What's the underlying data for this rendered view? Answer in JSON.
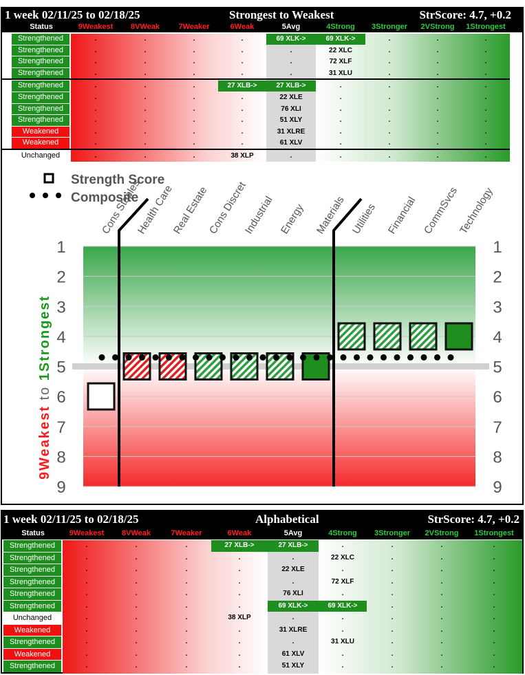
{
  "colors": {
    "strong_green": "#1e8f1e",
    "weak_red": "#f01010",
    "avg_gray": "#d9d9d9",
    "hatch_red": "#e02020",
    "hatch_green": "#2e9e3e"
  },
  "top_table": {
    "title_left": "1 week 02/11/25 to 02/18/25",
    "title_center": "Strongest to Weakest",
    "title_right": "StrScore: 4.7, +0.2",
    "columns": [
      "Status",
      "9Weakest",
      "8VWeak",
      "7Weaker",
      "6Weak",
      "5Avg",
      "4Strong",
      "3Stronger",
      "2VStrong",
      "1Strongest"
    ],
    "rows": [
      {
        "status": "Strengthened",
        "cells": [
          ".",
          ".",
          ".",
          ".",
          "69 XLK->",
          "69 XLK->",
          ".",
          ".",
          "."
        ],
        "move_from": 4,
        "move_to": 5
      },
      {
        "status": "Strengthened",
        "cells": [
          ".",
          ".",
          ".",
          ".",
          ".",
          "22 XLC",
          ".",
          ".",
          "."
        ]
      },
      {
        "status": "Strengthened",
        "cells": [
          ".",
          ".",
          ".",
          ".",
          ".",
          "72 XLF",
          ".",
          ".",
          "."
        ]
      },
      {
        "status": "Strengthened",
        "cells": [
          ".",
          ".",
          ".",
          ".",
          ".",
          "31 XLU",
          ".",
          ".",
          "."
        ]
      },
      {
        "status": "Strengthened",
        "cells": [
          ".",
          ".",
          ".",
          "27 XLB->",
          "27 XLB->",
          ".",
          ".",
          ".",
          "."
        ],
        "move_from": 3,
        "move_to": 4
      },
      {
        "status": "Strengthened",
        "cells": [
          ".",
          ".",
          ".",
          ".",
          "22 XLE",
          ".",
          ".",
          ".",
          "."
        ]
      },
      {
        "status": "Strengthened",
        "cells": [
          ".",
          ".",
          ".",
          ".",
          "76 XLI",
          ".",
          ".",
          ".",
          "."
        ]
      },
      {
        "status": "Strengthened",
        "cells": [
          ".",
          ".",
          ".",
          ".",
          "51 XLY",
          ".",
          ".",
          ".",
          "."
        ]
      },
      {
        "status": "Weakened",
        "cells": [
          ".",
          ".",
          ".",
          ".",
          "31 XLRE",
          ".",
          ".",
          ".",
          "."
        ]
      },
      {
        "status": "Weakened",
        "cells": [
          ".",
          ".",
          ".",
          ".",
          "61 XLV",
          ".",
          ".",
          ".",
          "."
        ]
      },
      {
        "status": "Unchanged",
        "cells": [
          ".",
          ".",
          ".",
          "38 XLP",
          ".",
          ".",
          ".",
          ".",
          "."
        ]
      }
    ]
  },
  "chart_data": {
    "type": "scatter",
    "title": "",
    "legend": [
      {
        "name": "Strength Score",
        "marker": "square"
      },
      {
        "name": "Composite",
        "marker": "dots"
      }
    ],
    "categories": [
      "Cons Staples",
      "Health Care",
      "Real Estate",
      "Cons Discret",
      "Industrial",
      "Energy",
      "Materials",
      "Utilities",
      "Financial",
      "CommSvcs",
      "Technology"
    ],
    "y_axis": {
      "label_left": "9Weakest",
      "label_mid": "to",
      "label_right": "1Strongest",
      "ticks": [
        "1",
        "2",
        "3",
        "4",
        "5",
        "6",
        "7",
        "8",
        "9"
      ],
      "range": [
        1,
        9
      ],
      "inverted": true
    },
    "strength_scores": [
      6,
      5,
      5,
      5,
      5,
      5,
      5,
      4,
      4,
      4,
      4
    ],
    "composite": 4.7,
    "average_line": 5,
    "fill_styles": [
      "open",
      "hatch-red",
      "hatch-red",
      "hatch-green",
      "hatch-green",
      "hatch-green",
      "solid-green",
      "hatch-green",
      "hatch-green",
      "hatch-green",
      "solid-green"
    ]
  },
  "bottom_table": {
    "title_left": "1 week 02/11/25 to 02/18/25",
    "title_center": "Alphabetical",
    "title_right": "StrScore: 4.7, +0.2",
    "columns": [
      "Status",
      "9Weakest",
      "8VWeak",
      "7Weaker",
      "6Weak",
      "5Avg",
      "4Strong",
      "3Stronger",
      "2VStrong",
      "1Strongest"
    ],
    "rows": [
      {
        "status": "Strengthened",
        "cells": [
          ".",
          ".",
          ".",
          "27 XLB->",
          "27 XLB->",
          ".",
          ".",
          ".",
          "."
        ],
        "move_from": 3,
        "move_to": 4
      },
      {
        "status": "Strengthened",
        "cells": [
          ".",
          ".",
          ".",
          ".",
          ".",
          "22 XLC",
          ".",
          ".",
          "."
        ]
      },
      {
        "status": "Strengthened",
        "cells": [
          ".",
          ".",
          ".",
          ".",
          "22 XLE",
          ".",
          ".",
          ".",
          "."
        ]
      },
      {
        "status": "Strengthened",
        "cells": [
          ".",
          ".",
          ".",
          ".",
          ".",
          "72 XLF",
          ".",
          ".",
          "."
        ]
      },
      {
        "status": "Strengthened",
        "cells": [
          ".",
          ".",
          ".",
          ".",
          "76 XLI",
          ".",
          ".",
          ".",
          "."
        ]
      },
      {
        "status": "Strengthened",
        "cells": [
          ".",
          ".",
          ".",
          ".",
          "69 XLK->",
          "69 XLK->",
          ".",
          ".",
          "."
        ],
        "move_from": 4,
        "move_to": 5
      },
      {
        "status": "Unchanged",
        "cells": [
          ".",
          ".",
          ".",
          "38 XLP",
          ".",
          ".",
          ".",
          ".",
          "."
        ]
      },
      {
        "status": "Weakened",
        "cells": [
          ".",
          ".",
          ".",
          ".",
          "31 XLRE",
          ".",
          ".",
          ".",
          "."
        ]
      },
      {
        "status": "Strengthened",
        "cells": [
          ".",
          ".",
          ".",
          ".",
          ".",
          "31 XLU",
          ".",
          ".",
          "."
        ]
      },
      {
        "status": "Weakened",
        "cells": [
          ".",
          ".",
          ".",
          ".",
          "61 XLV",
          ".",
          ".",
          ".",
          "."
        ]
      },
      {
        "status": "Strengthened",
        "cells": [
          ".",
          ".",
          ".",
          ".",
          "51 XLY",
          ".",
          ".",
          ".",
          "."
        ]
      }
    ]
  }
}
